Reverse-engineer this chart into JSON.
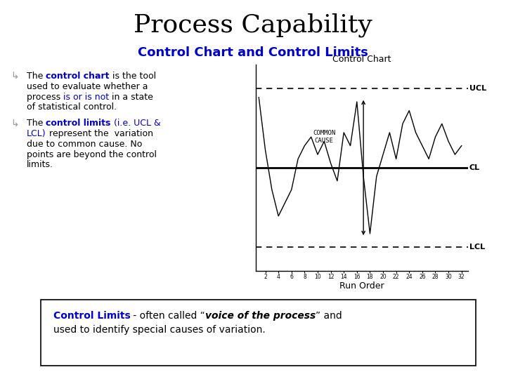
{
  "title": "Process Capability",
  "subtitle": "Control Chart and Control Limits",
  "subtitle_color": "#0000CC",
  "title_color": "#000000",
  "background_color": "#FFFFFF",
  "bullet_color": "#888888",
  "chart_title": "Control Chart",
  "ucl_label": "UCL",
  "cl_label": "CL",
  "lcl_label": "LCL",
  "common_cause_label": "COMMON\nCAUSE",
  "run_order_label": "Run Order",
  "xticks": [
    2,
    4,
    6,
    8,
    10,
    12,
    14,
    16,
    18,
    20,
    22,
    24,
    26,
    28,
    30,
    32
  ],
  "ucl": 1.8,
  "cl": 0.0,
  "lcl": -1.8,
  "data_y": [
    1.6,
    0.4,
    -0.5,
    -1.1,
    -0.8,
    -0.5,
    0.2,
    0.5,
    0.7,
    0.3,
    0.6,
    0.1,
    -0.3,
    0.8,
    0.5,
    1.5,
    -0.2,
    -1.5,
    -0.2,
    0.3,
    0.8,
    0.2,
    1.0,
    1.3,
    0.8,
    0.5,
    0.2,
    0.7,
    1.0,
    0.6,
    0.3,
    0.5
  ],
  "title_fontsize": 26,
  "subtitle_fontsize": 13,
  "body_fontsize": 9,
  "chart_title_fontsize": 9,
  "footer_fontsize": 10,
  "fig_width": 7.2,
  "fig_height": 5.4,
  "fig_dpi": 100
}
